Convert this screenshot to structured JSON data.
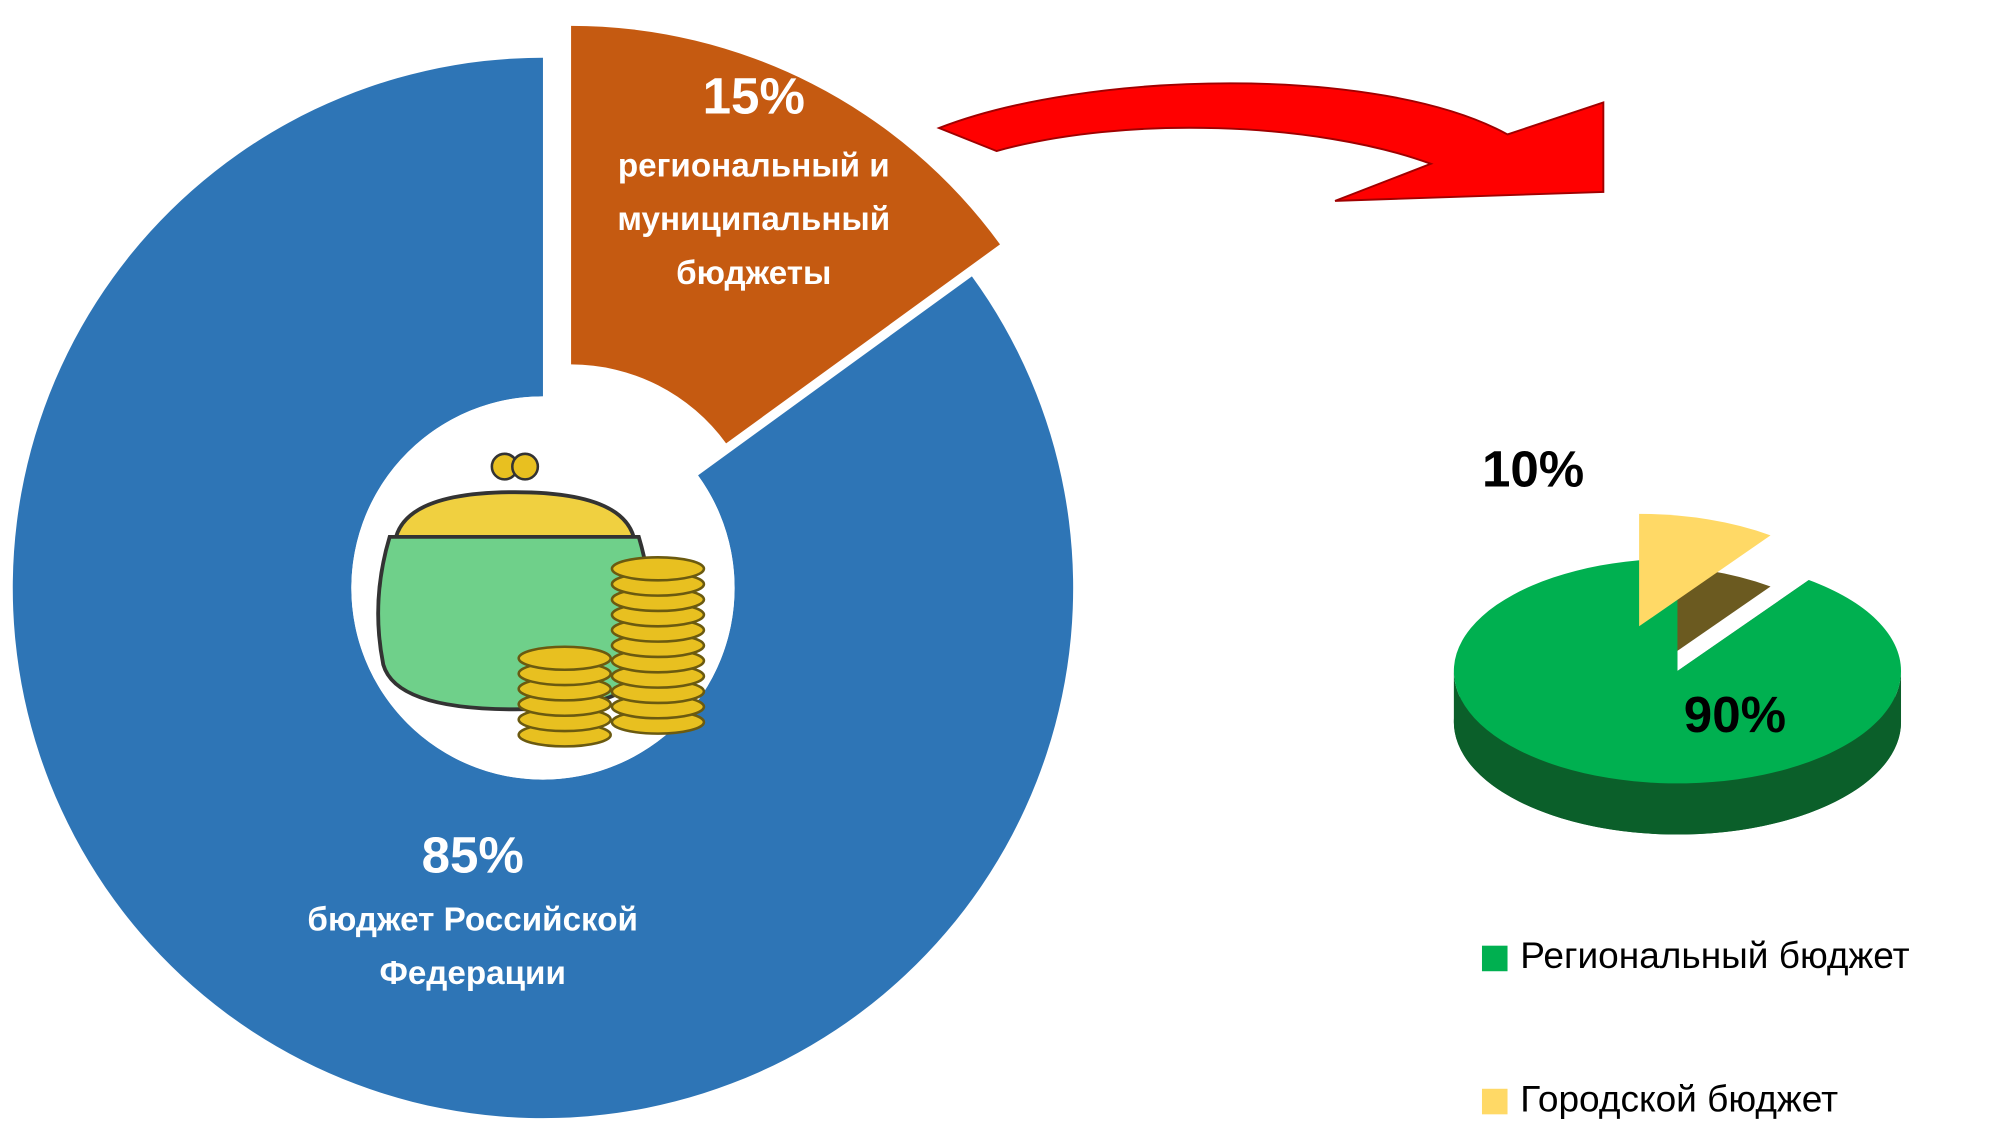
{
  "chart_data": [
    {
      "type": "donut",
      "categories": [
        "региональный и муниципальный бюджеты",
        "бюджет Российской Федерации"
      ],
      "values": [
        15,
        85
      ],
      "value_labels": [
        "15%",
        "85%"
      ],
      "colors": [
        "#c55a11",
        "#2e75b6"
      ]
    },
    {
      "type": "pie3d",
      "categories": [
        "Региональный бюджет",
        "Городской бюджет"
      ],
      "values": [
        90,
        10
      ],
      "value_labels": [
        "90%",
        "10%"
      ],
      "colors": [
        "#00b050",
        "#ffd966"
      ]
    }
  ]
}
